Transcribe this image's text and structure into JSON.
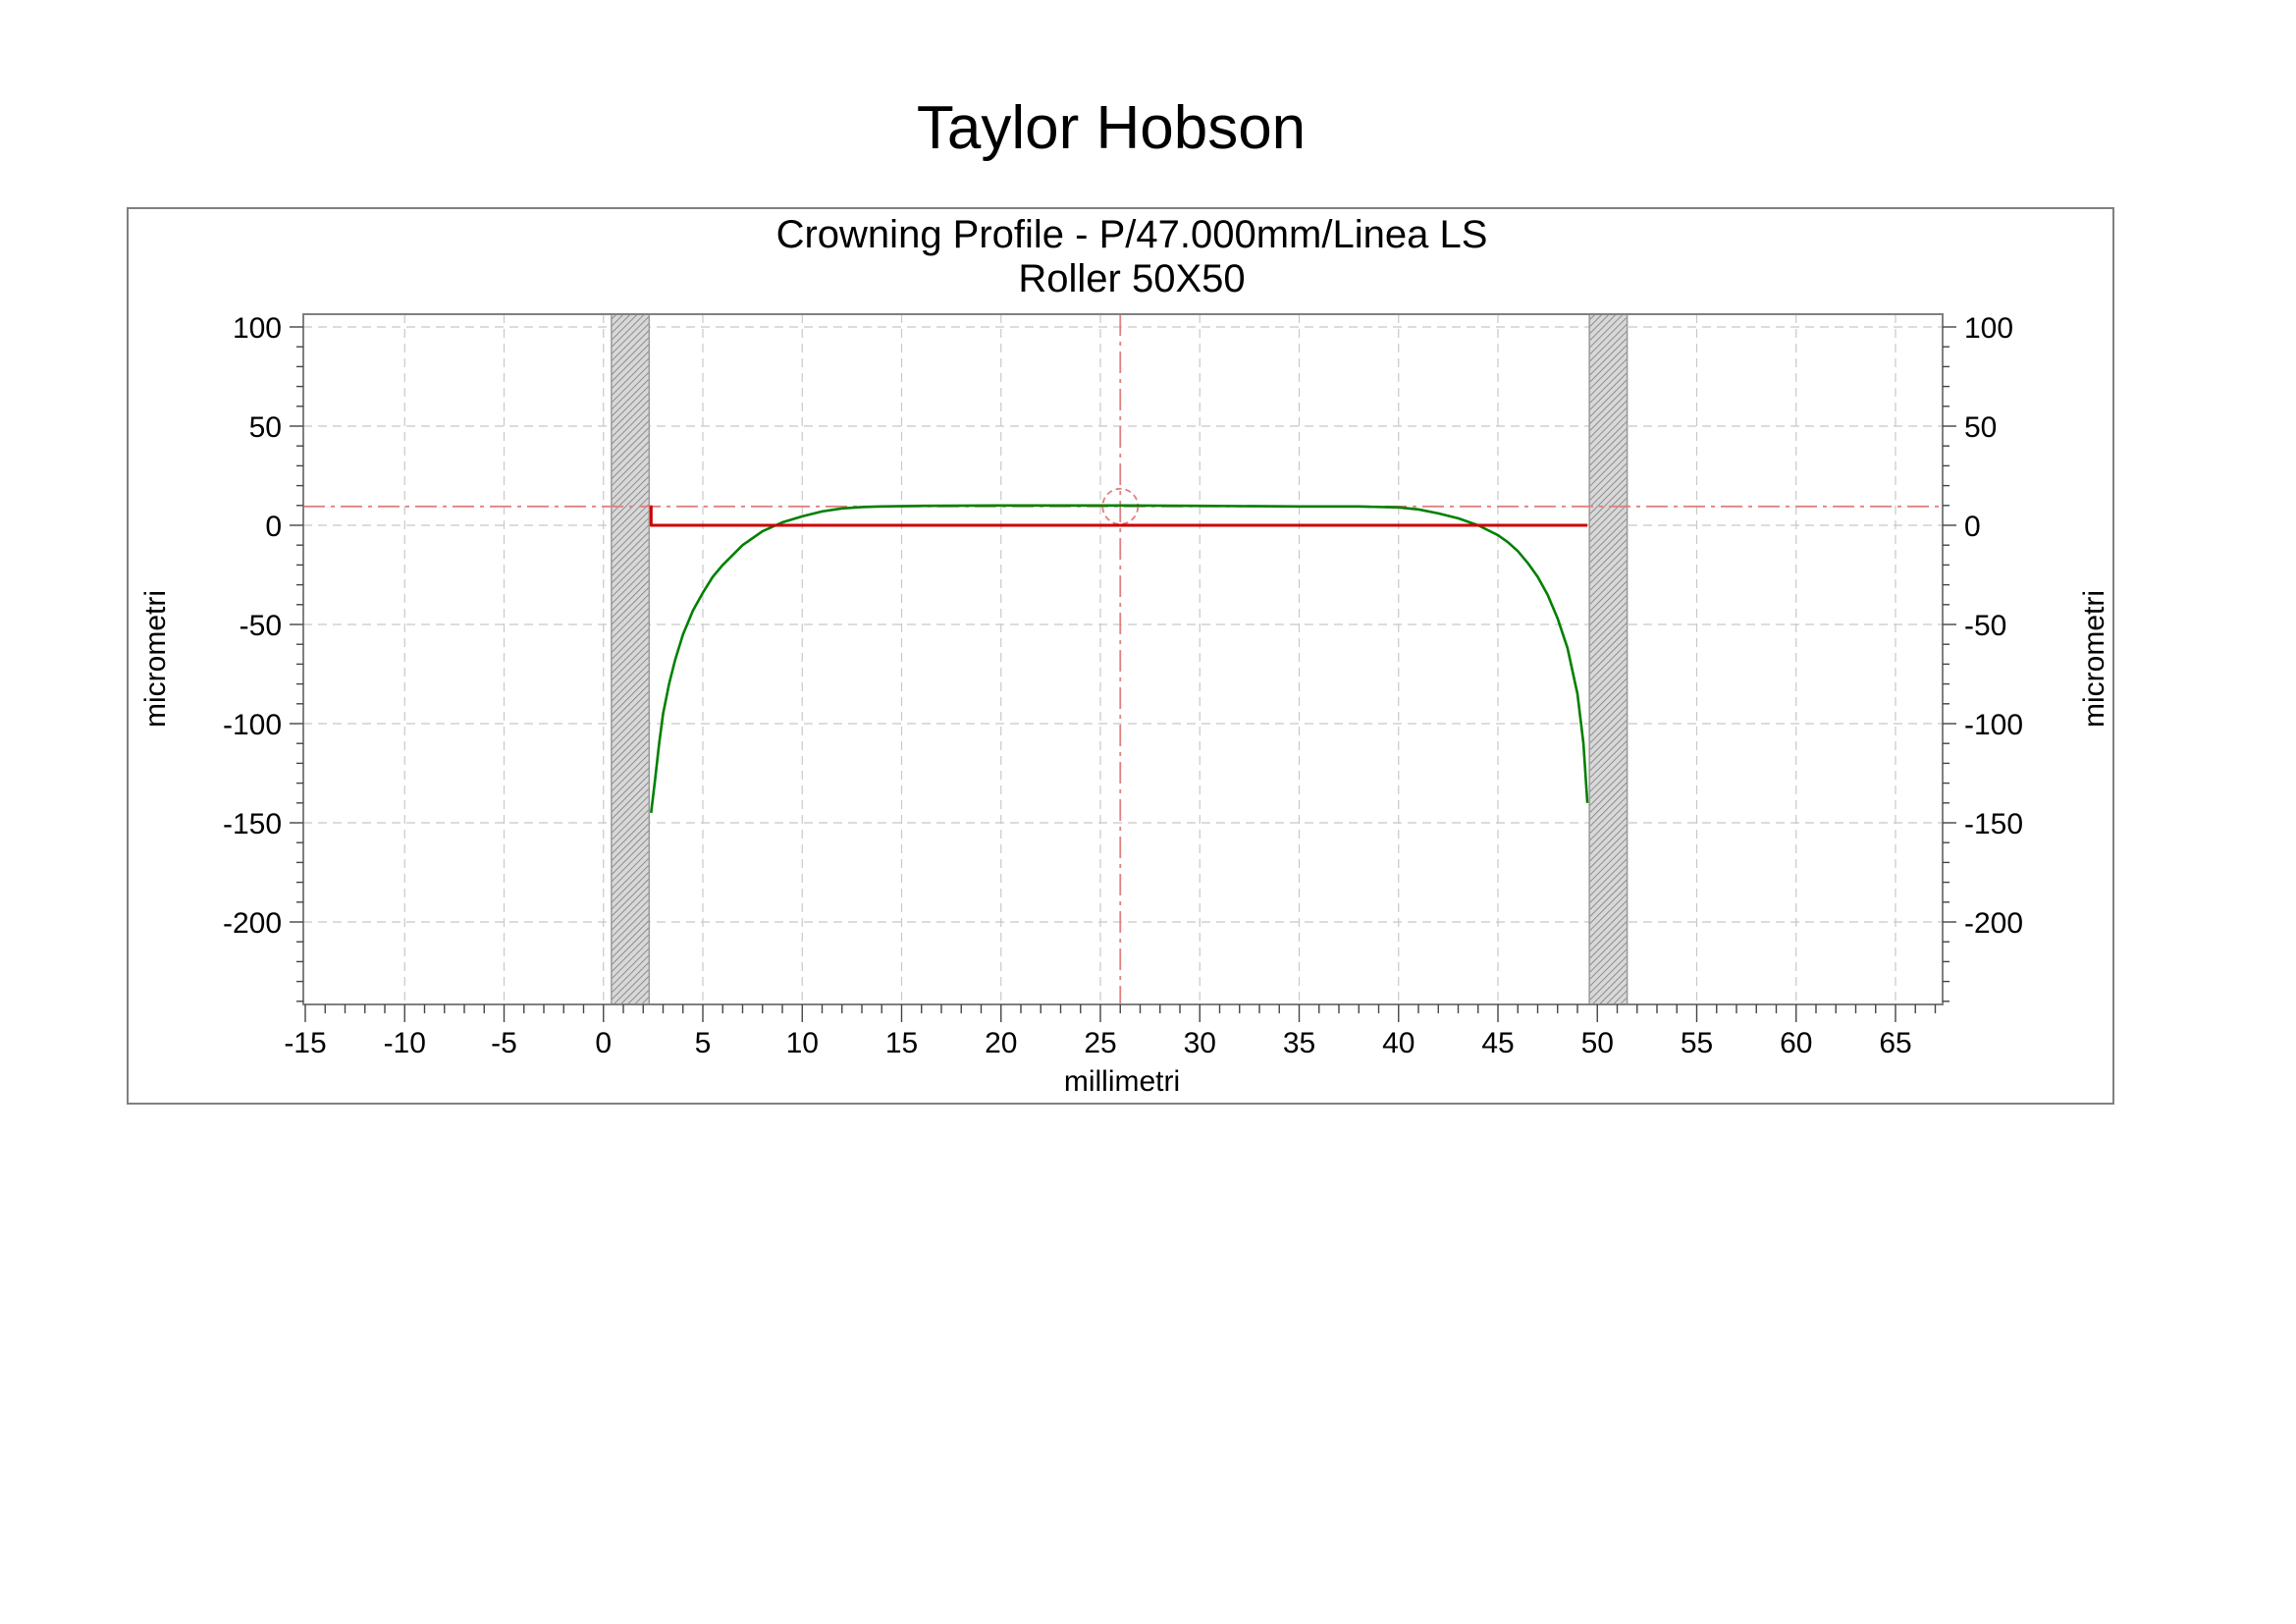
{
  "header": {
    "title": "Taylor Hobson"
  },
  "chart_data": {
    "type": "line",
    "title": "Crowning Profile - P/47.000mm/Linea LS",
    "subtitle": "Roller 50X50",
    "xlabel": "millimetri",
    "ylabel_left": "micrometri",
    "ylabel_right": "micrometri",
    "xlim": [
      -15,
      67.5
    ],
    "ylim": [
      -240,
      107
    ],
    "x_ticks": [
      -15,
      -10,
      -5,
      0,
      5,
      10,
      15,
      20,
      25,
      30,
      35,
      40,
      45,
      50,
      55,
      60,
      65
    ],
    "y_ticks": [
      100,
      50,
      0,
      -50,
      -100,
      -150,
      -200
    ],
    "grid": true,
    "excluded_zones": [
      {
        "x_start": 0.4,
        "x_end": 2.3
      },
      {
        "x_start": 49.6,
        "x_end": 51.5
      }
    ],
    "cursor": {
      "x": 26.0,
      "y": 9.5
    },
    "series": [
      {
        "color": "#008000",
        "x": [
          2.4,
          2.6,
          2.8,
          3.0,
          3.3,
          3.6,
          4.0,
          4.5,
          5.0,
          5.5,
          6.0,
          7.0,
          8.0,
          9.0,
          10.0,
          11.0,
          12.0,
          13.0,
          14.0,
          16.0,
          20.0,
          25.0,
          26.0,
          30.0,
          35.0,
          38.0,
          40.0,
          41.0,
          42.0,
          43.0,
          44.0,
          45.0,
          45.5,
          46.0,
          46.5,
          47.0,
          47.5,
          48.0,
          48.5,
          49.0,
          49.3,
          49.5
        ],
        "values": [
          -145,
          -128,
          -110,
          -95,
          -80,
          -68,
          -55,
          -43,
          -34,
          -26,
          -20,
          -10,
          -3,
          1.5,
          4.5,
          7,
          8.5,
          9.2,
          9.5,
          9.8,
          10,
          10,
          10,
          9.8,
          9.5,
          9.5,
          9,
          8,
          6,
          3.5,
          0,
          -5,
          -8.5,
          -13,
          -19,
          -26,
          -35,
          -47,
          -62,
          -85,
          -110,
          -140
        ]
      },
      {
        "color": "#cc0000",
        "x": [
          2.4,
          2.4,
          49.5
        ],
        "values": [
          10,
          0,
          0
        ]
      }
    ]
  }
}
